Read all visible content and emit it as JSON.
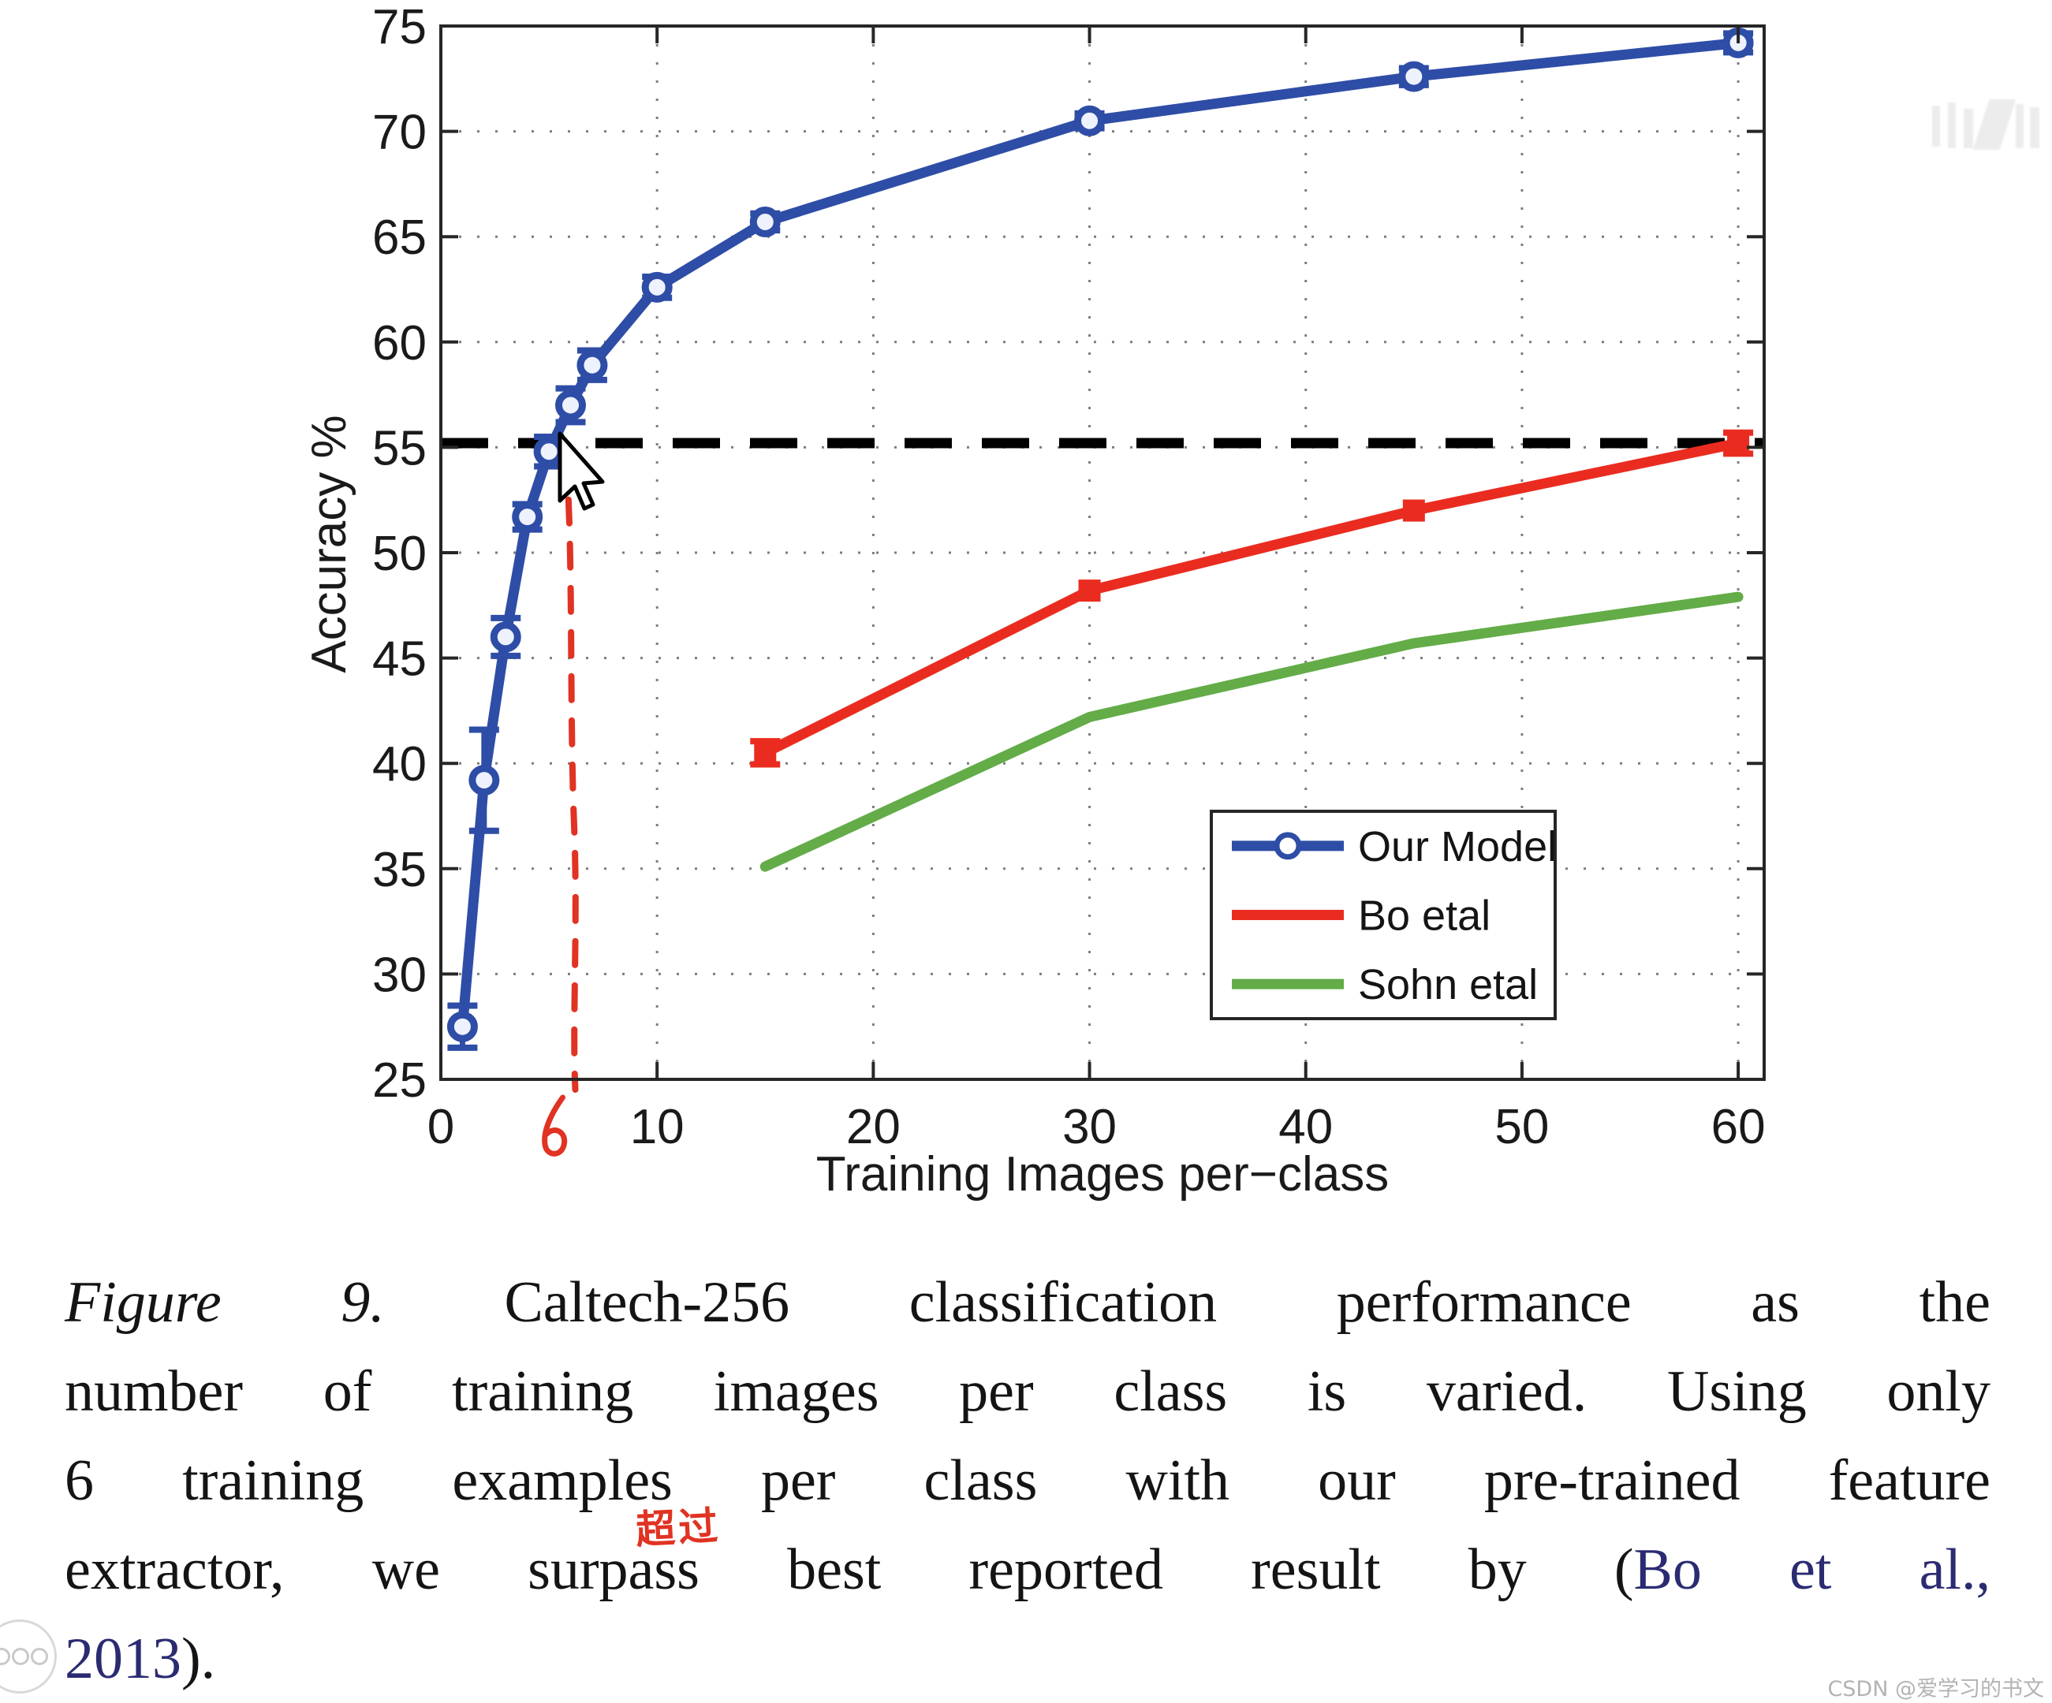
{
  "chart_data": {
    "type": "line",
    "title": "",
    "xlabel": "Training Images per−class",
    "ylabel": "Accuracy %",
    "xlim": [
      0,
      61.2
    ],
    "ylim": [
      25,
      75
    ],
    "xticks": [
      0,
      10,
      20,
      30,
      40,
      50,
      60
    ],
    "yticks": [
      25,
      30,
      35,
      40,
      45,
      50,
      55,
      60,
      65,
      70,
      75
    ],
    "grid": "dotted",
    "legend_position": "lower-right",
    "series": [
      {
        "name": "Our Model",
        "color": "#2e4da6",
        "marker": "circle",
        "x": [
          1,
          2,
          3,
          4,
          5,
          6,
          7,
          10,
          15,
          30,
          45,
          60
        ],
        "y": [
          27.5,
          39.2,
          46.0,
          51.7,
          54.8,
          57.0,
          58.9,
          62.6,
          65.7,
          70.5,
          72.6,
          74.2
        ],
        "yerr": [
          1.0,
          2.4,
          0.9,
          0.6,
          0.7,
          0.8,
          0.7,
          0.5,
          0.4,
          0.35,
          0.4,
          0.45
        ]
      },
      {
        "name": "Bo etal",
        "color": "#ea2c20",
        "marker": "square",
        "x": [
          15,
          30,
          45,
          60
        ],
        "y": [
          40.5,
          48.2,
          52.0,
          55.2
        ],
        "yerr": [
          0.55,
          0,
          0,
          0.5
        ]
      },
      {
        "name": "Sohn etal",
        "color": "#63ac48",
        "marker": "none",
        "x": [
          15,
          30,
          45,
          60
        ],
        "y": [
          35.1,
          42.2,
          45.7,
          47.9
        ],
        "yerr": [
          0,
          0,
          0,
          0
        ]
      }
    ],
    "annotations": {
      "hline": {
        "y": 55.2,
        "style": "dashed",
        "color": "#000000"
      },
      "hand_vline": {
        "x": 6,
        "style": "dashed",
        "color": "#e03323",
        "label": "6"
      }
    }
  },
  "figure": {
    "caption": {
      "lines": [
        {
          "segments": [
            {
              "text": "Figure 9.",
              "style": "italic"
            },
            {
              "text": " Caltech-256 classification performance as the",
              "style": "normal"
            }
          ]
        },
        {
          "segments": [
            {
              "text": "number of training images per class is varied. Using only",
              "style": "normal"
            }
          ]
        },
        {
          "segments": [
            {
              "text": "6 training examples per class with our pre-trained feature",
              "style": "normal"
            }
          ]
        },
        {
          "segments": [
            {
              "text": "extractor, we surpass best reported result by (",
              "style": "normal"
            },
            {
              "text": "Bo et al.,",
              "style": "link"
            }
          ]
        },
        {
          "segments": [
            {
              "text": "2013",
              "style": "link"
            },
            {
              "text": ").",
              "style": "normal"
            }
          ]
        }
      ]
    },
    "hand_annotation": "超过"
  },
  "overlay": {
    "watermark_bottom_right": "CSDN @爱学习的书文"
  }
}
